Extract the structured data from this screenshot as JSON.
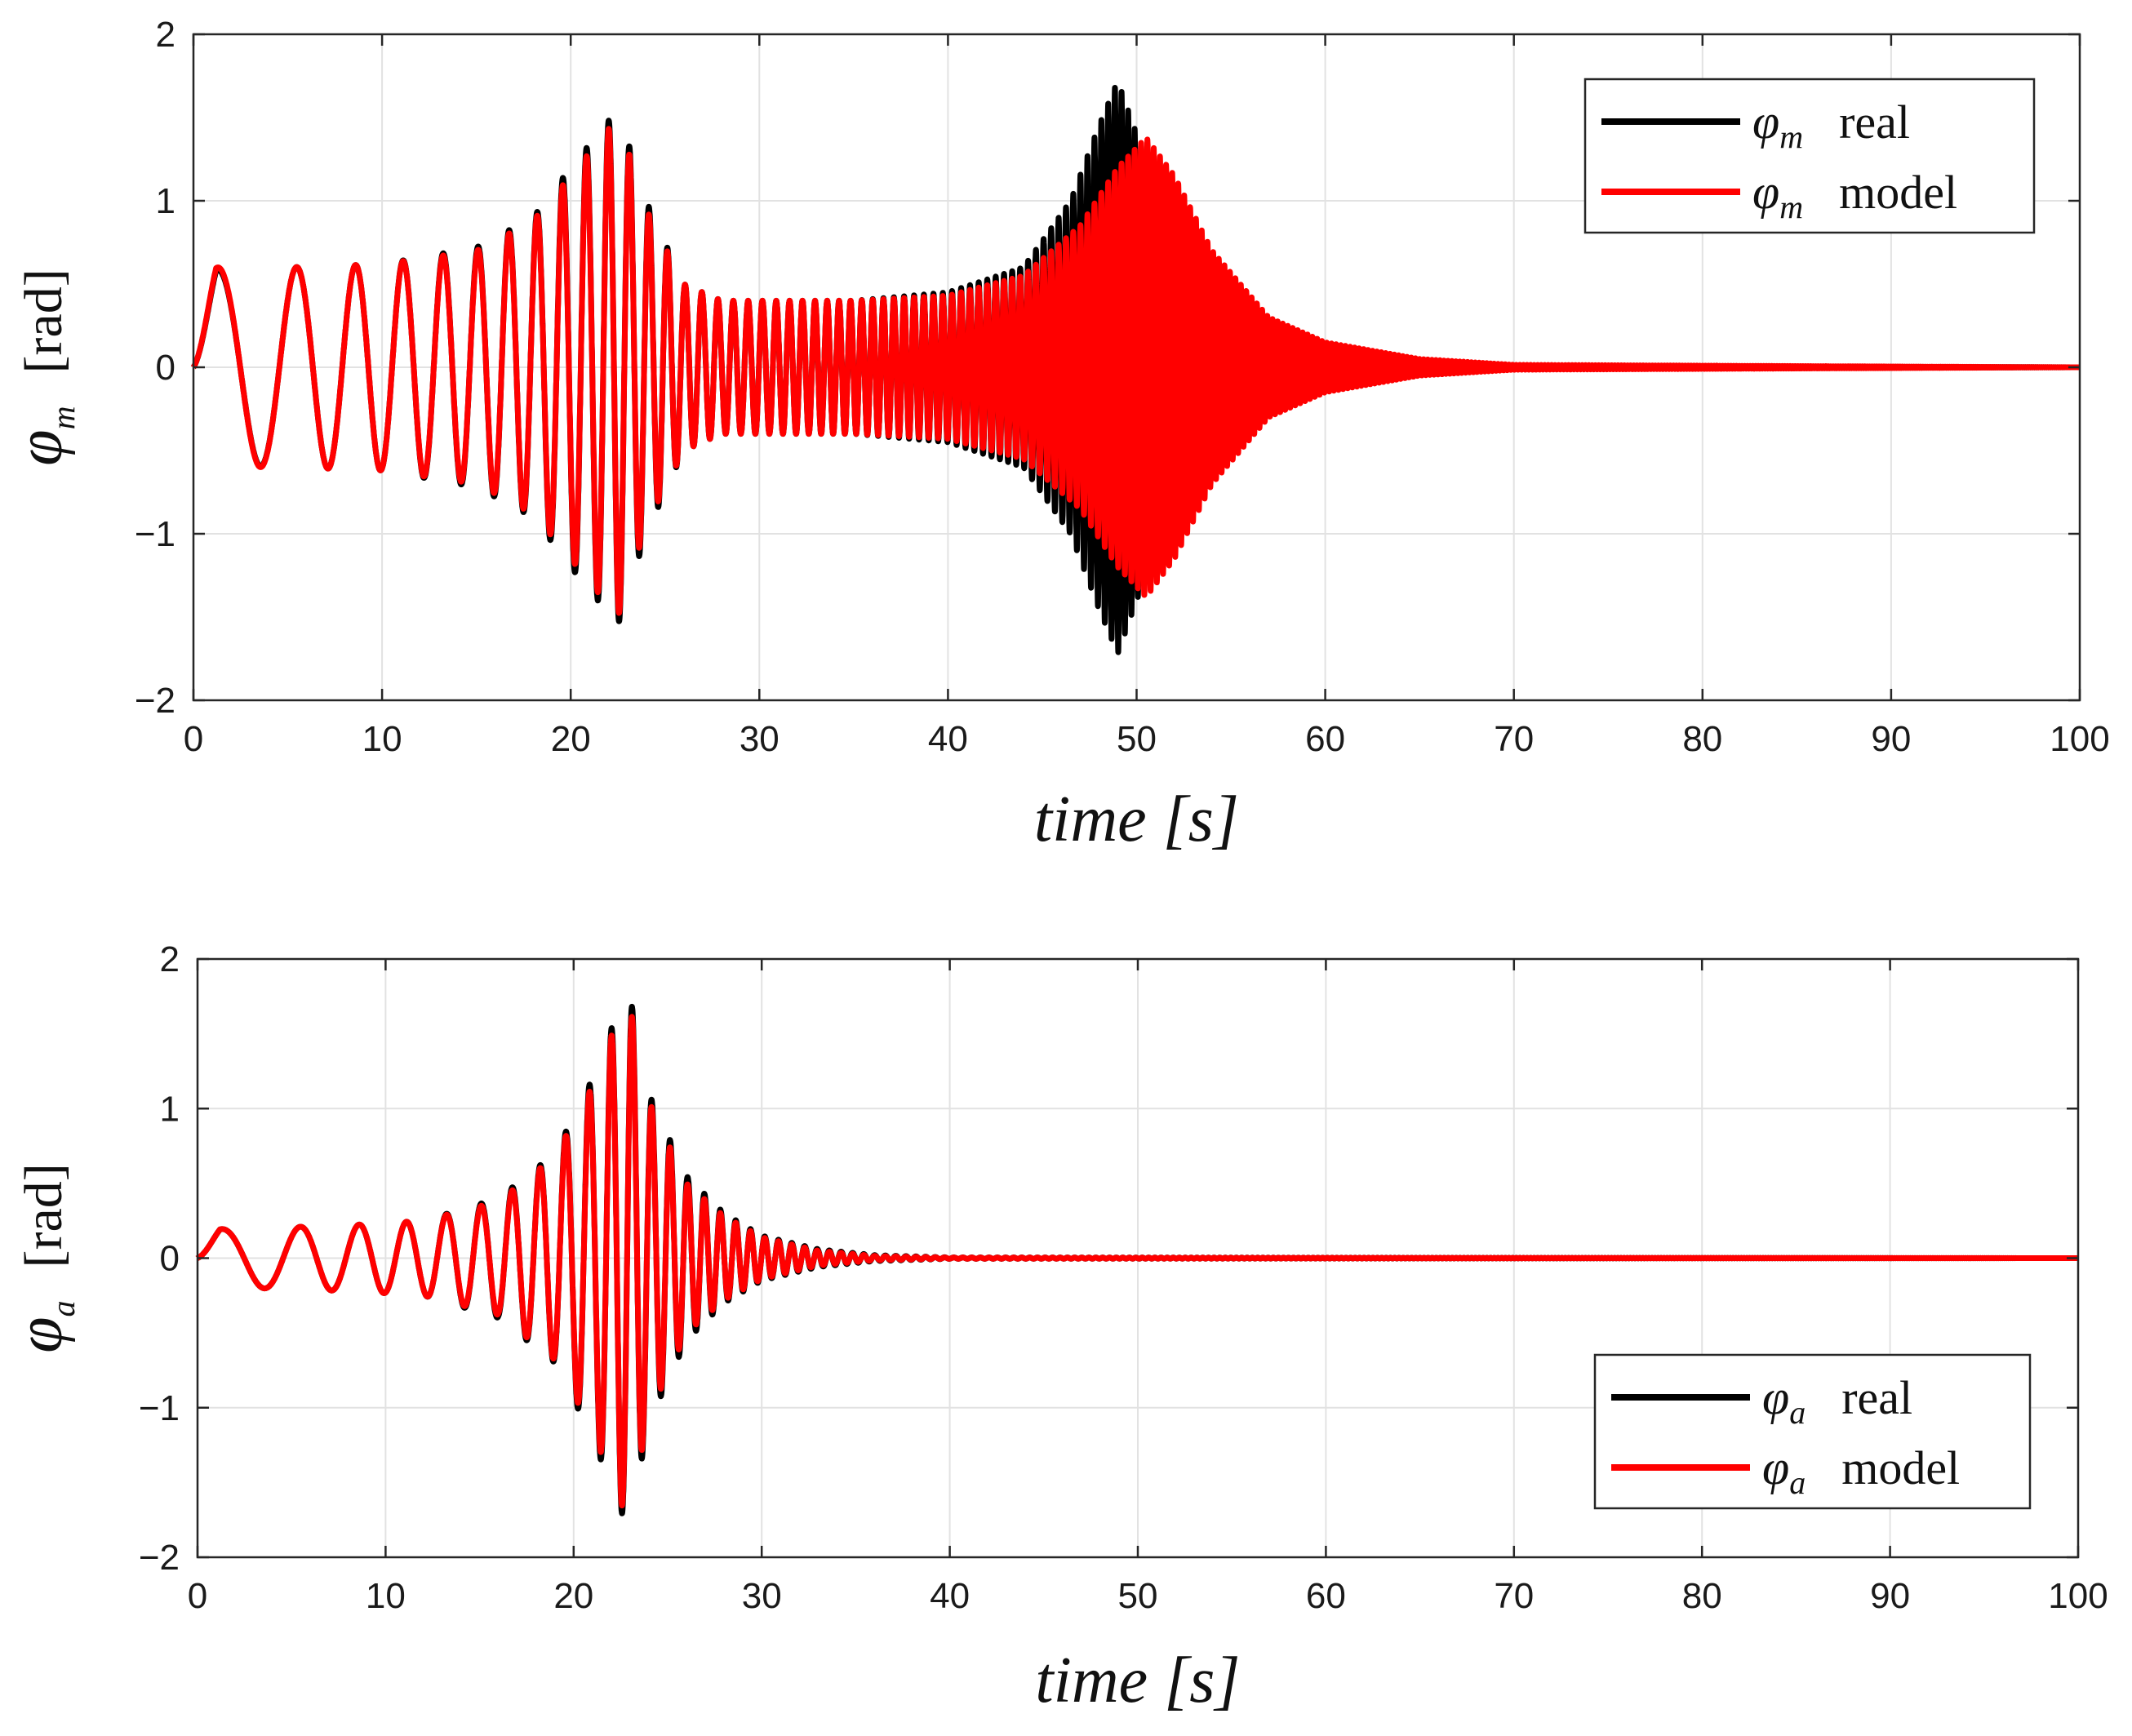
{
  "chart_data": [
    {
      "type": "line",
      "id": "top",
      "xlabel": "time [s]",
      "ylabel_symbol": "φ",
      "ylabel_subscript": "m",
      "ylabel_unit": "[rad]",
      "xlim": [
        0,
        100
      ],
      "ylim": [
        -2,
        2
      ],
      "xticks": [
        0,
        10,
        20,
        30,
        40,
        50,
        60,
        70,
        80,
        90,
        100
      ],
      "yticks": [
        -2,
        -1,
        0,
        1,
        2
      ],
      "ytick_labels": [
        "−2",
        "−1",
        "0",
        "1",
        "2"
      ],
      "grid": true,
      "legend_position": "top-right",
      "series": [
        {
          "name": "φm real",
          "symbol": "φ",
          "subscript": "m",
          "label": "real",
          "color": "#000000",
          "description": "swept-frequency oscillation; peaks ~1.55 near t=22.5 s, resonance peak ~1.72 at t=49 s, decays to 0 by t~70 s",
          "amplitude_envelope": [
            [
              0,
              0.58
            ],
            [
              5,
              0.6
            ],
            [
              10,
              0.62
            ],
            [
              15,
              0.72
            ],
            [
              18,
              0.9
            ],
            [
              20,
              1.2
            ],
            [
              22.5,
              1.55
            ],
            [
              24,
              1.0
            ],
            [
              26,
              0.5
            ],
            [
              28,
              0.4
            ],
            [
              35,
              0.4
            ],
            [
              40,
              0.45
            ],
            [
              44,
              0.6
            ],
            [
              46.5,
              1.0
            ],
            [
              48,
              1.45
            ],
            [
              49,
              1.72
            ],
            [
              50,
              1.4
            ],
            [
              52,
              0.8
            ],
            [
              55,
              0.35
            ],
            [
              60,
              0.12
            ],
            [
              65,
              0.04
            ],
            [
              70,
              0.01
            ],
            [
              100,
              0.0
            ]
          ]
        },
        {
          "name": "φm model",
          "symbol": "φ",
          "subscript": "m",
          "label": "model",
          "color": "#ff0000",
          "description": "swept-frequency oscillation; peaks ~1.5 near t=22.5 s, resonance peak ~1.38 at t=50.5 s, decays to 0 by t~70 s",
          "amplitude_envelope": [
            [
              0,
              0.6
            ],
            [
              5,
              0.6
            ],
            [
              10,
              0.62
            ],
            [
              15,
              0.7
            ],
            [
              18,
              0.88
            ],
            [
              20,
              1.15
            ],
            [
              22.5,
              1.5
            ],
            [
              24,
              0.95
            ],
            [
              26,
              0.5
            ],
            [
              28,
              0.4
            ],
            [
              35,
              0.4
            ],
            [
              40,
              0.43
            ],
            [
              44,
              0.55
            ],
            [
              47,
              0.85
            ],
            [
              49,
              1.2
            ],
            [
              50.5,
              1.38
            ],
            [
              52,
              1.15
            ],
            [
              54,
              0.7
            ],
            [
              57,
              0.3
            ],
            [
              60,
              0.15
            ],
            [
              65,
              0.05
            ],
            [
              70,
              0.015
            ],
            [
              100,
              0.0
            ]
          ]
        }
      ]
    },
    {
      "type": "line",
      "id": "bottom",
      "xlabel": "time [s]",
      "ylabel_symbol": "φ",
      "ylabel_subscript": "a",
      "ylabel_unit": "[rad]",
      "xlim": [
        0,
        100
      ],
      "ylim": [
        -2,
        2
      ],
      "xticks": [
        0,
        10,
        20,
        30,
        40,
        50,
        60,
        70,
        80,
        90,
        100
      ],
      "yticks": [
        -2,
        -1,
        0,
        1,
        2
      ],
      "ytick_labels": [
        "−2",
        "−1",
        "0",
        "1",
        "2"
      ],
      "grid": true,
      "legend_position": "bottom-right",
      "series": [
        {
          "name": "φa real",
          "symbol": "φ",
          "subscript": "a",
          "label": "real",
          "color": "#000000",
          "description": "oscillation peaking ~1.68 / -1.78 near t=22.5-23 s, decaying to 0 by t~38 s",
          "amplitude_envelope": [
            [
              0,
              0.19
            ],
            [
              3,
              0.2
            ],
            [
              8,
              0.22
            ],
            [
              12,
              0.25
            ],
            [
              16,
              0.4
            ],
            [
              19,
              0.7
            ],
            [
              21,
              1.2
            ],
            [
              22.5,
              1.7
            ],
            [
              23,
              1.75
            ],
            [
              24,
              1.1
            ],
            [
              26,
              0.55
            ],
            [
              28,
              0.3
            ],
            [
              30,
              0.15
            ],
            [
              33,
              0.06
            ],
            [
              36,
              0.02
            ],
            [
              40,
              0.005
            ],
            [
              100,
              0.0
            ]
          ]
        },
        {
          "name": "φa model",
          "symbol": "φ",
          "subscript": "a",
          "label": "model",
          "color": "#ff0000",
          "description": "oscillation peaking ~1.65 / -1.7 near t=22.5-23 s, decaying to 0 by t~38 s",
          "amplitude_envelope": [
            [
              0,
              0.19
            ],
            [
              3,
              0.2
            ],
            [
              8,
              0.22
            ],
            [
              12,
              0.25
            ],
            [
              16,
              0.38
            ],
            [
              19,
              0.68
            ],
            [
              21,
              1.15
            ],
            [
              22.5,
              1.65
            ],
            [
              23,
              1.68
            ],
            [
              24,
              1.05
            ],
            [
              26,
              0.5
            ],
            [
              28,
              0.28
            ],
            [
              30,
              0.14
            ],
            [
              33,
              0.05
            ],
            [
              36,
              0.015
            ],
            [
              40,
              0.004
            ],
            [
              100,
              0.0
            ]
          ]
        }
      ]
    }
  ]
}
